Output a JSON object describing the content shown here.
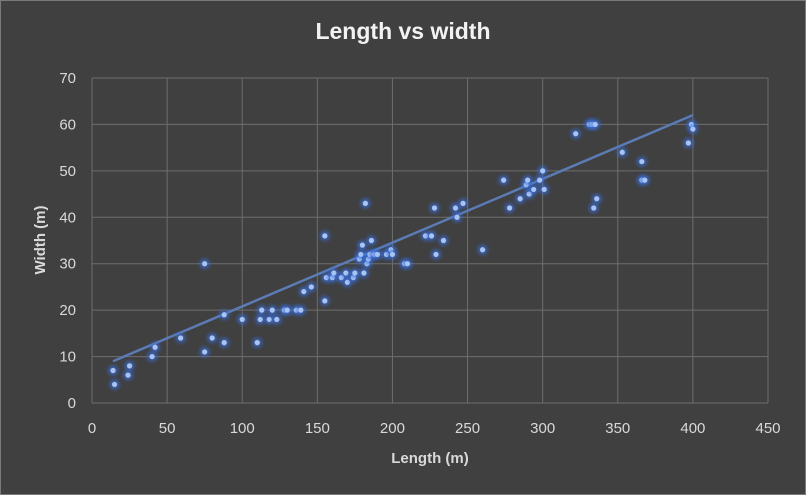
{
  "chart_data": {
    "type": "scatter",
    "title": "Length vs width",
    "xlabel": "Length (m)",
    "ylabel": "Width (m)",
    "xlim": [
      0,
      450
    ],
    "ylim": [
      0,
      70
    ],
    "x_ticks": [
      0,
      50,
      100,
      150,
      200,
      250,
      300,
      350,
      400,
      450
    ],
    "y_ticks": [
      0,
      10,
      20,
      30,
      40,
      50,
      60,
      70
    ],
    "grid": true,
    "legend": "none",
    "trendline": {
      "type": "linear",
      "from": [
        14,
        9
      ],
      "to": [
        400,
        62
      ]
    },
    "colors": {
      "background": "#404040",
      "grid": "#6e6e6e",
      "marker": "#a9c4f0",
      "glow": "#3a6fe0",
      "trendline": "#5b7bb5",
      "text": "#d9d9d9"
    },
    "points": [
      [
        14,
        7
      ],
      [
        15,
        4
      ],
      [
        24,
        6
      ],
      [
        25,
        8
      ],
      [
        40,
        10
      ],
      [
        42,
        12
      ],
      [
        59,
        14
      ],
      [
        75,
        30
      ],
      [
        75,
        11
      ],
      [
        80,
        14
      ],
      [
        88,
        19
      ],
      [
        88,
        13
      ],
      [
        100,
        18
      ],
      [
        110,
        13
      ],
      [
        112,
        18
      ],
      [
        113,
        20
      ],
      [
        118,
        18
      ],
      [
        120,
        20
      ],
      [
        123,
        18
      ],
      [
        128,
        20
      ],
      [
        130,
        20
      ],
      [
        136,
        20
      ],
      [
        139,
        20
      ],
      [
        141,
        24
      ],
      [
        146,
        25
      ],
      [
        155,
        36
      ],
      [
        155,
        22
      ],
      [
        156,
        27
      ],
      [
        160,
        27
      ],
      [
        161,
        28
      ],
      [
        166,
        27
      ],
      [
        169,
        28
      ],
      [
        170,
        26
      ],
      [
        174,
        27
      ],
      [
        175,
        28
      ],
      [
        178,
        31
      ],
      [
        179,
        32
      ],
      [
        180,
        34
      ],
      [
        181,
        28
      ],
      [
        182,
        43
      ],
      [
        183,
        30
      ],
      [
        184,
        31
      ],
      [
        185,
        32
      ],
      [
        186,
        35
      ],
      [
        188,
        32
      ],
      [
        190,
        32
      ],
      [
        196,
        32
      ],
      [
        199,
        33
      ],
      [
        200,
        32
      ],
      [
        208,
        30
      ],
      [
        210,
        30
      ],
      [
        222,
        36
      ],
      [
        226,
        36
      ],
      [
        228,
        42
      ],
      [
        229,
        32
      ],
      [
        234,
        35
      ],
      [
        242,
        42
      ],
      [
        243,
        40
      ],
      [
        247,
        43
      ],
      [
        260,
        33
      ],
      [
        274,
        48
      ],
      [
        278,
        42
      ],
      [
        285,
        44
      ],
      [
        289,
        47
      ],
      [
        290,
        48
      ],
      [
        291,
        45
      ],
      [
        294,
        46
      ],
      [
        298,
        48
      ],
      [
        300,
        50
      ],
      [
        301,
        46
      ],
      [
        322,
        58
      ],
      [
        331,
        60
      ],
      [
        333,
        60
      ],
      [
        335,
        60
      ],
      [
        334,
        42
      ],
      [
        336,
        44
      ],
      [
        353,
        54
      ],
      [
        366,
        52
      ],
      [
        366,
        48
      ],
      [
        368,
        48
      ],
      [
        397,
        56
      ],
      [
        399,
        60
      ],
      [
        400,
        59
      ]
    ]
  }
}
